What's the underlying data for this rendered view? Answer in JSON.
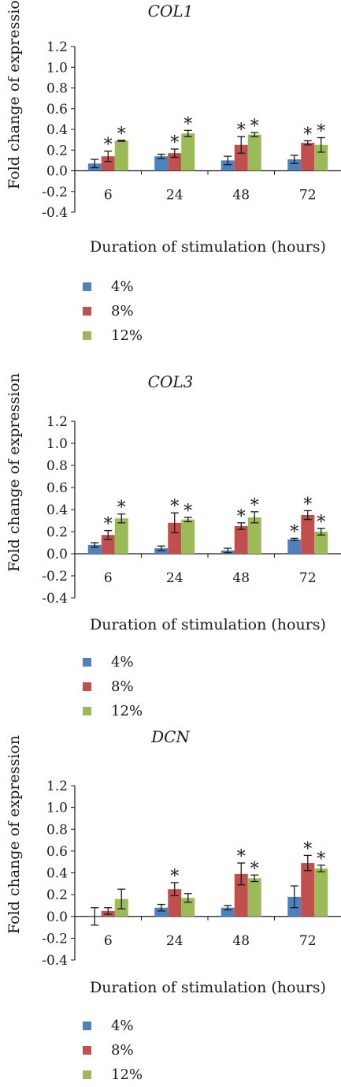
{
  "colors": {
    "4%": "#4f81bd",
    "8%": "#c0504d",
    "12%": "#9bbb59"
  },
  "chart_data": [
    {
      "type": "bar",
      "title": "COL1",
      "xlabel": "Duration of stimulation (hours)",
      "ylabel": "Fold change of expression",
      "categories": [
        "6",
        "24",
        "48",
        "72"
      ],
      "ylim": [
        -0.4,
        1.2
      ],
      "yticks": [
        "1.2",
        "1.0",
        "0.8",
        "0.6",
        "0.4",
        "0.2",
        "0.0",
        "-0.2",
        "-0.4"
      ],
      "legend": "below",
      "series": [
        {
          "name": "4%",
          "values": [
            0.07,
            0.14,
            0.1,
            0.11
          ],
          "errors": [
            0.04,
            0.02,
            0.04,
            0.04
          ],
          "sig": [
            false,
            false,
            false,
            false
          ]
        },
        {
          "name": "8%",
          "values": [
            0.14,
            0.17,
            0.25,
            0.27
          ],
          "errors": [
            0.05,
            0.04,
            0.08,
            0.02
          ],
          "sig": [
            true,
            true,
            true,
            true
          ]
        },
        {
          "name": "12%",
          "values": [
            0.29,
            0.36,
            0.35,
            0.25
          ],
          "errors": [
            0.005,
            0.03,
            0.02,
            0.07
          ],
          "sig": [
            true,
            true,
            true,
            true
          ]
        }
      ]
    },
    {
      "type": "bar",
      "title": "COL3",
      "xlabel": "Duration of stimulation (hours)",
      "ylabel": "Fold change of expression",
      "categories": [
        "6",
        "24",
        "48",
        "72"
      ],
      "ylim": [
        -0.4,
        1.2
      ],
      "yticks": [
        "1.2",
        "1.0",
        "0.8",
        "0.6",
        "0.4",
        "0.2",
        "0.0",
        "-0.2",
        "-0.4"
      ],
      "legend": "below",
      "series": [
        {
          "name": "4%",
          "values": [
            0.08,
            0.05,
            0.03,
            0.13
          ],
          "errors": [
            0.02,
            0.02,
            0.02,
            0.01
          ],
          "sig": [
            false,
            false,
            false,
            true
          ]
        },
        {
          "name": "8%",
          "values": [
            0.17,
            0.28,
            0.25,
            0.35
          ],
          "errors": [
            0.04,
            0.09,
            0.03,
            0.04
          ],
          "sig": [
            true,
            true,
            true,
            true
          ]
        },
        {
          "name": "12%",
          "values": [
            0.32,
            0.31,
            0.33,
            0.2
          ],
          "errors": [
            0.04,
            0.02,
            0.05,
            0.03
          ],
          "sig": [
            true,
            true,
            true,
            true
          ]
        }
      ]
    },
    {
      "type": "bar",
      "title": "DCN",
      "xlabel": "Duration of stimulation (hours)",
      "ylabel": "Fold change of expression",
      "categories": [
        "6",
        "24",
        "48",
        "72"
      ],
      "ylim": [
        -0.4,
        1.2
      ],
      "yticks": [
        "1.2",
        "1.0",
        "0.8",
        "0.6",
        "0.4",
        "0.2",
        "0.0",
        "-0.2",
        "-0.4"
      ],
      "legend": "below",
      "series": [
        {
          "name": "4%",
          "values": [
            0.0,
            0.08,
            0.08,
            0.18
          ],
          "errors": [
            0.08,
            0.03,
            0.02,
            0.1
          ],
          "sig": [
            false,
            false,
            false,
            false
          ]
        },
        {
          "name": "8%",
          "values": [
            0.05,
            0.25,
            0.39,
            0.49
          ],
          "errors": [
            0.03,
            0.06,
            0.1,
            0.07
          ],
          "sig": [
            false,
            true,
            true,
            true
          ]
        },
        {
          "name": "12%",
          "values": [
            0.16,
            0.17,
            0.35,
            0.44
          ],
          "errors": [
            0.09,
            0.04,
            0.03,
            0.03
          ],
          "sig": [
            false,
            false,
            true,
            true
          ]
        }
      ]
    }
  ]
}
